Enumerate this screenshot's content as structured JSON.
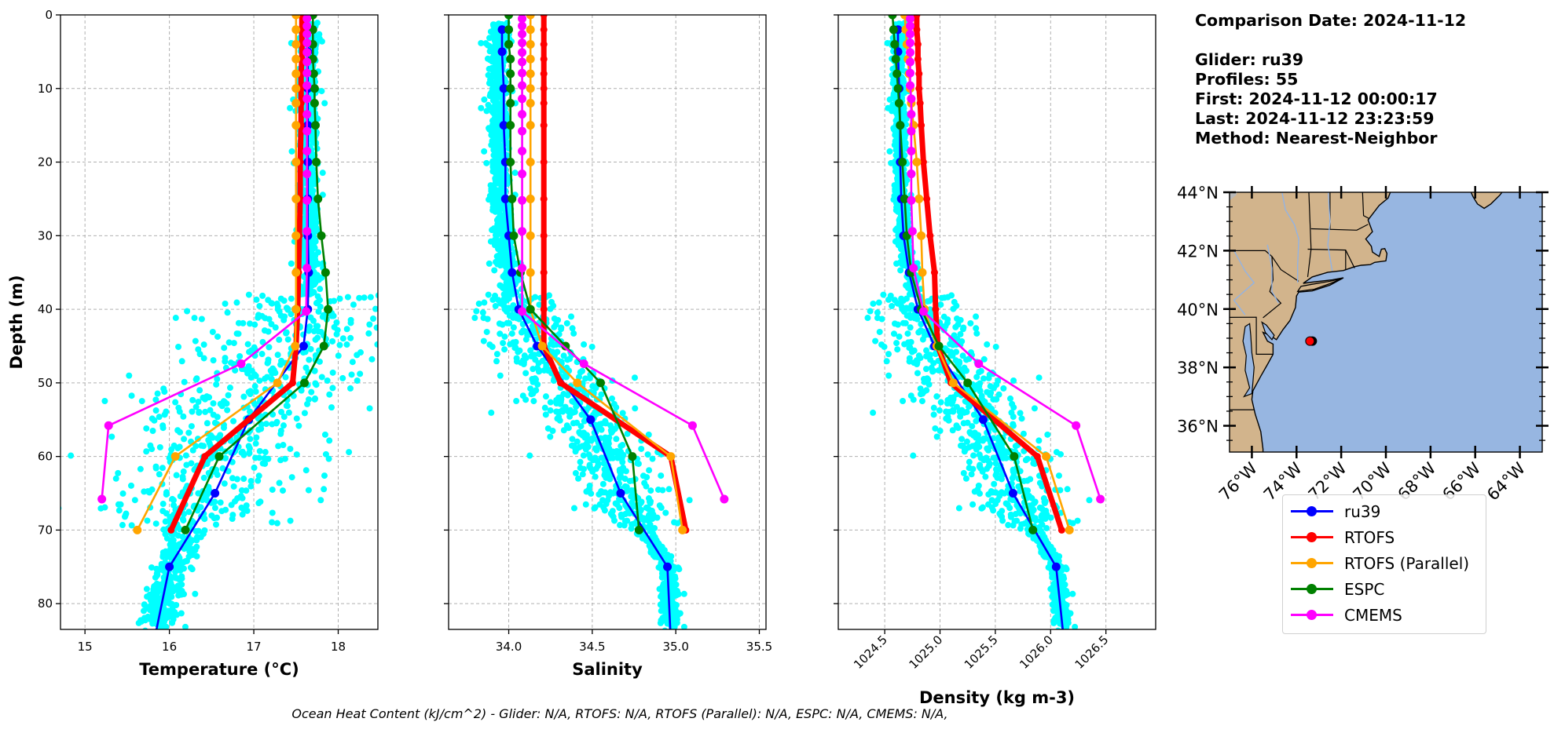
{
  "info": {
    "comparison_date": "Comparison Date: 2024-11-12",
    "glider": "Glider: ru39",
    "profiles": "Profiles: 55",
    "first": "First: 2024-11-12 00:00:17",
    "last": "Last: 2024-11-12 23:23:59",
    "method": "Method: Nearest-Neighbor"
  },
  "caption": "Ocean Heat Content (kJ/cm^2) - Glider: N/A,  RTOFS: N/A,  RTOFS (Parallel): N/A,  ESPC: N/A,  CMEMS: N/A,",
  "legend": [
    {
      "name": "ru39",
      "color": "#0000ff"
    },
    {
      "name": "RTOFS",
      "color": "#ff0000"
    },
    {
      "name": "RTOFS (Parallel)",
      "color": "#ffa500"
    },
    {
      "name": "ESPC",
      "color": "#008000"
    },
    {
      "name": "CMEMS",
      "color": "#ff00ff"
    }
  ],
  "scatter_color": "#00ffff",
  "depths": {
    "ru39": [
      2,
      5,
      10,
      15,
      20,
      25,
      30,
      35,
      40,
      45,
      55,
      65,
      75,
      85
    ],
    "RTOFS": [
      0,
      2,
      4,
      6,
      8,
      10,
      12,
      15,
      20,
      25,
      30,
      35,
      40,
      45,
      50,
      60,
      70
    ],
    "RTOFS (Parallel)": [
      0,
      2,
      4,
      6,
      8,
      10,
      12,
      15,
      20,
      25,
      30,
      35,
      40,
      45,
      50,
      60,
      70
    ],
    "ESPC": [
      0,
      2,
      4,
      6,
      8,
      10,
      12,
      15,
      20,
      25,
      30,
      35,
      40,
      45,
      50,
      60,
      70
    ],
    "CMEMS": [
      0.5,
      1.5,
      2.6,
      3.8,
      5.1,
      6.4,
      7.9,
      9.6,
      11.4,
      13.5,
      15.8,
      18.5,
      21.6,
      25.2,
      29.4,
      34.4,
      40.3,
      47.4,
      55.8,
      65.8
    ]
  },
  "chart_data": [
    {
      "type": "line",
      "xlabel": "Temperature (°C)",
      "ylabel": "Depth (m)",
      "xlim": [
        14.71,
        18.47
      ],
      "ylim": [
        83.5,
        0
      ],
      "grid": true,
      "xticks": [
        15,
        16,
        17,
        18
      ],
      "xtick_labels": [
        "15",
        "16",
        "17",
        "18"
      ],
      "yticks": [
        0,
        10,
        20,
        30,
        40,
        50,
        60,
        70,
        80
      ],
      "ytick_labels": [
        "0",
        "10",
        "20",
        "30",
        "40",
        "50",
        "60",
        "70",
        "80"
      ],
      "series": [
        {
          "name": "ru39",
          "values": [
            17.63,
            17.64,
            17.64,
            17.64,
            17.64,
            17.64,
            17.64,
            17.65,
            17.64,
            17.59,
            16.94,
            16.54,
            16.0,
            15.82
          ]
        },
        {
          "name": "RTOFS",
          "values": [
            17.57,
            17.57,
            17.57,
            17.57,
            17.56,
            17.56,
            17.56,
            17.56,
            17.55,
            17.55,
            17.54,
            17.53,
            17.52,
            17.5,
            17.46,
            16.42,
            16.02
          ]
        },
        {
          "name": "RTOFS (Parallel)",
          "values": [
            17.5,
            17.5,
            17.5,
            17.5,
            17.5,
            17.5,
            17.5,
            17.5,
            17.5,
            17.5,
            17.5,
            17.5,
            17.5,
            17.49,
            17.28,
            16.07,
            15.62
          ]
        },
        {
          "name": "ESPC",
          "values": [
            17.7,
            17.7,
            17.7,
            17.7,
            17.71,
            17.72,
            17.72,
            17.73,
            17.74,
            17.76,
            17.8,
            17.85,
            17.88,
            17.83,
            17.6,
            16.59,
            16.19
          ]
        },
        {
          "name": "CMEMS",
          "values": [
            17.63,
            17.63,
            17.63,
            17.63,
            17.63,
            17.63,
            17.63,
            17.63,
            17.63,
            17.63,
            17.63,
            17.63,
            17.63,
            17.63,
            17.63,
            17.63,
            17.62,
            16.85,
            15.28,
            15.2
          ]
        }
      ]
    },
    {
      "type": "line",
      "xlabel": "Salinity",
      "ylabel": "",
      "xlim": [
        33.64,
        35.54
      ],
      "ylim": [
        83.5,
        0
      ],
      "grid": true,
      "xticks": [
        34.0,
        34.5,
        35.0,
        35.5
      ],
      "xtick_labels": [
        "34.0",
        "34.5",
        "35.0",
        "35.5"
      ],
      "yticks": [
        0,
        10,
        20,
        30,
        40,
        50,
        60,
        70,
        80
      ],
      "ytick_labels": [],
      "series": [
        {
          "name": "ru39",
          "values": [
            33.96,
            33.96,
            33.97,
            33.97,
            33.98,
            33.98,
            34.0,
            34.02,
            34.06,
            34.17,
            34.49,
            34.67,
            34.95,
            34.97
          ]
        },
        {
          "name": "RTOFS",
          "values": [
            34.21,
            34.21,
            34.21,
            34.21,
            34.21,
            34.21,
            34.21,
            34.21,
            34.21,
            34.21,
            34.21,
            34.21,
            34.21,
            34.21,
            34.31,
            34.97,
            35.06
          ]
        },
        {
          "name": "RTOFS (Parallel)",
          "values": [
            34.13,
            34.13,
            34.13,
            34.13,
            34.13,
            34.13,
            34.13,
            34.13,
            34.13,
            34.13,
            34.13,
            34.13,
            34.13,
            34.2,
            34.41,
            34.97,
            35.04
          ]
        },
        {
          "name": "ESPC",
          "values": [
            34.0,
            34.0,
            34.0,
            34.01,
            34.01,
            34.01,
            34.01,
            34.01,
            34.01,
            34.02,
            34.03,
            34.07,
            34.13,
            34.34,
            34.55,
            34.74,
            34.78
          ]
        },
        {
          "name": "CMEMS",
          "values": [
            34.08,
            34.08,
            34.08,
            34.08,
            34.08,
            34.08,
            34.08,
            34.08,
            34.08,
            34.08,
            34.08,
            34.08,
            34.08,
            34.08,
            34.08,
            34.08,
            34.08,
            34.45,
            35.1,
            35.29
          ]
        }
      ]
    },
    {
      "type": "line",
      "xlabel": "Density (kg m-3)",
      "ylabel": "",
      "xlim": [
        1024.08,
        1026.95
      ],
      "ylim": [
        83.5,
        0
      ],
      "grid": true,
      "xticks": [
        1024.5,
        1025.0,
        1025.5,
        1026.0,
        1026.5
      ],
      "xtick_labels": [
        "1024.5",
        "1025.0",
        "1025.5",
        "1026.0",
        "1026.5"
      ],
      "yticks": [
        0,
        10,
        20,
        30,
        40,
        50,
        60,
        70,
        80
      ],
      "ytick_labels": [],
      "series": [
        {
          "name": "ru39",
          "values": [
            1024.62,
            1024.62,
            1024.63,
            1024.64,
            1024.64,
            1024.65,
            1024.67,
            1024.72,
            1024.8,
            1024.95,
            1025.39,
            1025.66,
            1026.05,
            1026.12
          ]
        },
        {
          "name": "RTOFS",
          "values": [
            1024.79,
            1024.79,
            1024.8,
            1024.8,
            1024.81,
            1024.81,
            1024.82,
            1024.83,
            1024.85,
            1024.88,
            1024.91,
            1024.95,
            1024.96,
            1024.98,
            1025.1,
            1025.88,
            1026.1
          ]
        },
        {
          "name": "RTOFS (Parallel)",
          "values": [
            1024.68,
            1024.69,
            1024.7,
            1024.71,
            1024.72,
            1024.73,
            1024.74,
            1024.76,
            1024.79,
            1024.81,
            1024.83,
            1024.84,
            1024.86,
            1024.97,
            1025.12,
            1025.96,
            1026.17
          ]
        },
        {
          "name": "ESPC",
          "values": [
            1024.57,
            1024.58,
            1024.59,
            1024.6,
            1024.61,
            1024.62,
            1024.63,
            1024.64,
            1024.66,
            1024.68,
            1024.7,
            1024.74,
            1024.83,
            1024.99,
            1025.25,
            1025.67,
            1025.84
          ]
        },
        {
          "name": "CMEMS",
          "values": [
            1024.73,
            1024.73,
            1024.73,
            1024.73,
            1024.73,
            1024.73,
            1024.73,
            1024.73,
            1024.74,
            1024.74,
            1024.74,
            1024.74,
            1024.74,
            1024.74,
            1024.75,
            1024.76,
            1024.85,
            1025.35,
            1026.23,
            1026.45
          ]
        }
      ]
    }
  ],
  "map": {
    "lon_range": [
      -77.0,
      -63.0
    ],
    "lat_range": [
      35.1,
      44.0
    ],
    "lat_ticks": [
      36,
      38,
      40,
      42,
      44
    ],
    "lat_labels": [
      "36°N",
      "38°N",
      "40°N",
      "42°N",
      "44°N"
    ],
    "lon_ticks": [
      -76,
      -74,
      -72,
      -70,
      -68,
      -66,
      -64
    ],
    "lon_labels": [
      "76°W",
      "74°W",
      "72°W",
      "70°W",
      "68°W",
      "66°W",
      "64°W"
    ],
    "glider_position": {
      "lon": -73.4,
      "lat": 38.9
    },
    "land_color": "#d2b48c",
    "ocean_color": "#97b6e1",
    "marker_color": "#ff0000"
  }
}
